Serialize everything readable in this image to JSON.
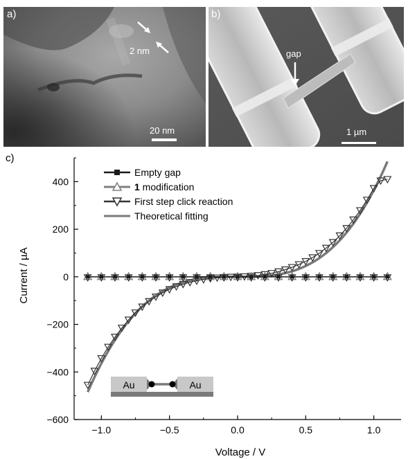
{
  "panel_a": {
    "label": "a)",
    "annotation": "2 nm",
    "scale_bar": "20 nm"
  },
  "panel_b": {
    "label": "b)",
    "annotation": "gap",
    "scale_bar": "1 µm"
  },
  "panel_c": {
    "label": "c)"
  },
  "inset": {
    "left_label": "Au",
    "right_label": "Au"
  },
  "colors": {
    "empty_gap": "#1a1a1a",
    "modification": "#808080",
    "click_reaction": "#333333",
    "fitting": "#7a7a7a"
  },
  "chart_data": {
    "type": "line",
    "xlabel": "Voltage / V",
    "ylabel": "Current / µA",
    "xlim": [
      -1.2,
      1.2
    ],
    "ylim": [
      -600,
      500
    ],
    "xticks": [
      -1.0,
      -0.5,
      0.0,
      0.5,
      1.0
    ],
    "xtick_labels": [
      "−1.0",
      "−0.5",
      "0.0",
      "0.5",
      "1.0"
    ],
    "yticks": [
      -600,
      -400,
      -200,
      0,
      200,
      400
    ],
    "ytick_labels": [
      "−600",
      "−400",
      "−200",
      "0",
      "200",
      "400"
    ],
    "grid": false,
    "legend_position": "top-left",
    "series": [
      {
        "name": "Empty gap",
        "marker": "filled-square",
        "x": [
          -1.1,
          -1.0,
          -0.9,
          -0.8,
          -0.7,
          -0.6,
          -0.5,
          -0.4,
          -0.3,
          -0.2,
          -0.1,
          0.0,
          0.1,
          0.2,
          0.3,
          0.4,
          0.5,
          0.6,
          0.7,
          0.8,
          0.9,
          1.0,
          1.1
        ],
        "y": [
          0,
          0,
          0,
          0,
          0,
          0,
          0,
          0,
          0,
          0,
          0,
          0,
          0,
          0,
          0,
          0,
          0,
          0,
          0,
          0,
          0,
          0,
          0
        ]
      },
      {
        "name": "1 modification",
        "name_bold_prefix": "1",
        "name_suffix": " modification",
        "marker": "open-triangle-up",
        "x": [
          -1.1,
          -1.0,
          -0.9,
          -0.8,
          -0.7,
          -0.6,
          -0.5,
          -0.4,
          -0.3,
          -0.2,
          -0.1,
          0.0,
          0.1,
          0.2,
          0.3,
          0.4,
          0.5,
          0.6,
          0.7,
          0.8,
          0.9,
          1.0,
          1.1
        ],
        "y": [
          0,
          0,
          0,
          0,
          0,
          0,
          0,
          0,
          0,
          0,
          0,
          0,
          0,
          0,
          0,
          0,
          0,
          0,
          0,
          0,
          0,
          0,
          0
        ]
      },
      {
        "name": "First step click reaction",
        "marker": "open-triangle-down",
        "x": [
          -1.1,
          -1.05,
          -1.0,
          -0.95,
          -0.9,
          -0.85,
          -0.8,
          -0.75,
          -0.7,
          -0.65,
          -0.6,
          -0.55,
          -0.5,
          -0.45,
          -0.4,
          -0.35,
          -0.3,
          -0.25,
          -0.2,
          -0.15,
          -0.1,
          -0.05,
          0.0,
          0.05,
          0.1,
          0.15,
          0.2,
          0.25,
          0.3,
          0.35,
          0.4,
          0.45,
          0.5,
          0.55,
          0.6,
          0.65,
          0.7,
          0.75,
          0.8,
          0.85,
          0.9,
          0.95,
          1.0,
          1.05,
          1.1
        ],
        "y": [
          -455,
          -396,
          -343,
          -295,
          -253,
          -215,
          -181,
          -151,
          -126,
          -103,
          -84,
          -67,
          -53,
          -41,
          -31,
          -23,
          -17,
          -11,
          -7,
          -4,
          -2,
          -1,
          0,
          1,
          3,
          6,
          10,
          15,
          22,
          30,
          40,
          52,
          65,
          81,
          99,
          121,
          145,
          173,
          204,
          240,
          279,
          323,
          372,
          404,
          410
        ]
      },
      {
        "name": "Theoretical fitting",
        "marker": "none",
        "x": [
          -1.1,
          -1.0,
          -0.9,
          -0.8,
          -0.7,
          -0.6,
          -0.5,
          -0.4,
          -0.3,
          -0.2,
          -0.1,
          0.0,
          0.1,
          0.2,
          0.3,
          0.4,
          0.5,
          0.6,
          0.7,
          0.8,
          0.9,
          1.0,
          1.1
        ],
        "y": [
          -485,
          -367,
          -269,
          -191,
          -130,
          -84,
          -51,
          -28,
          -13,
          -5,
          -1,
          0,
          1,
          5,
          13,
          28,
          51,
          84,
          130,
          191,
          269,
          367,
          485
        ]
      }
    ]
  }
}
